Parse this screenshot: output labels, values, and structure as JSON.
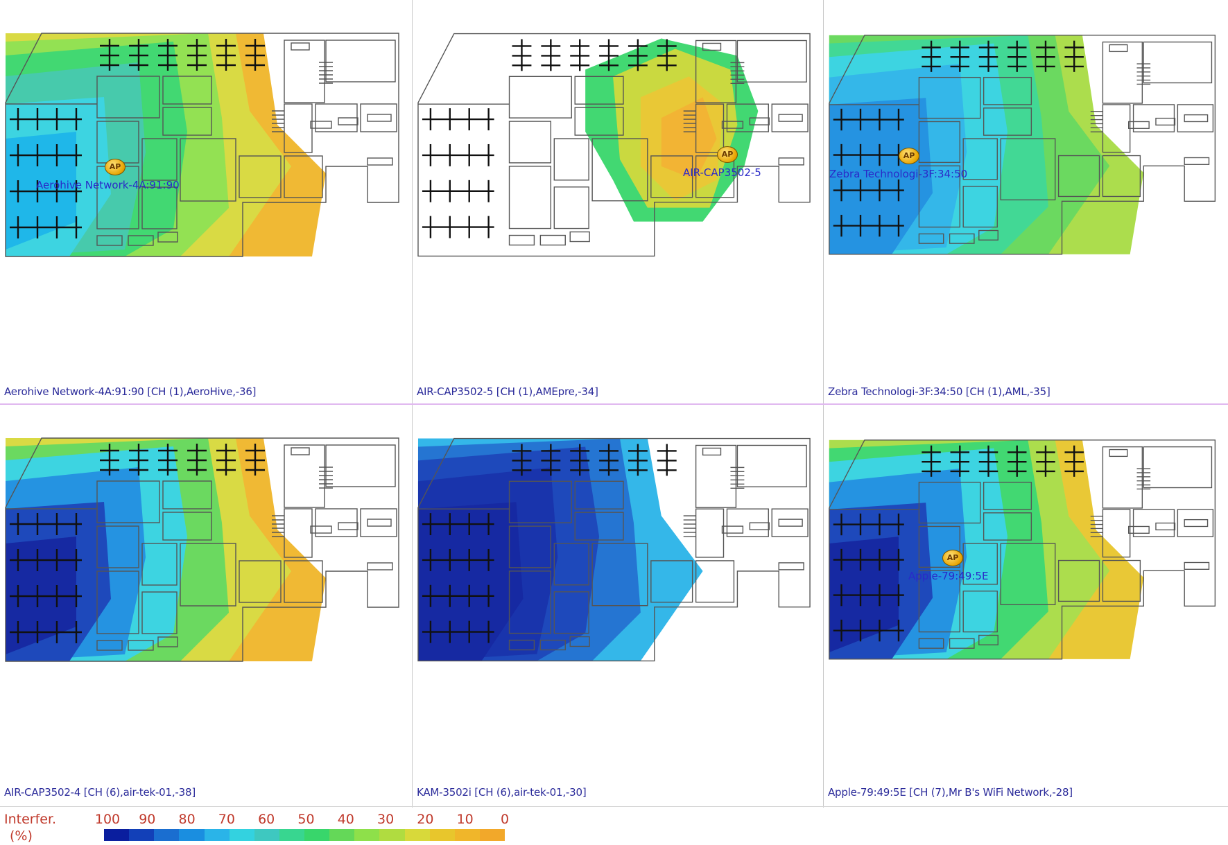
{
  "panels": [
    {
      "caption": "Aerohive Network-4A:91:90 [CH (1),AeroHive,-36]",
      "ap_name": "Aerohive Network-4A:91:90",
      "ap_label": "AP",
      "palette": [
        "#14b4e8",
        "#33d2e0",
        "#3ec8a8",
        "#38d66b",
        "#8ee04a",
        "#d8d93a",
        "#f0b62a"
      ]
    },
    {
      "caption": "AIR-CAP3502-5 [CH (1),AMEpre,-34]",
      "ap_name": "AIR-CAP3502-5",
      "ap_label": "AP",
      "palette": [
        "#ffffff",
        "#38d66b",
        "#7fd84a",
        "#c8d836",
        "#e8c62c",
        "#f2b02a"
      ]
    },
    {
      "caption": "Zebra Technologi-3F:34:50 [CH (1),AML,-35]",
      "ap_name": "Zebra Technologi-3F:34:50",
      "ap_label": "AP",
      "palette": [
        "#1a8ee0",
        "#2ab4e8",
        "#33d2e0",
        "#38d690",
        "#64d858",
        "#a8dc44"
      ]
    },
    {
      "caption": "AIR-CAP3502-4 [CH (6),air-tek-01,-38]",
      "ap_name": "",
      "ap_label": "",
      "palette": [
        "#0a1e9e",
        "#1240b8",
        "#1a8ee0",
        "#33d2e0",
        "#64d858",
        "#d8d93a",
        "#f0b62a"
      ]
    },
    {
      "caption": "KAM-3502i [CH (6),air-tek-01,-30]",
      "ap_name": "",
      "ap_label": "",
      "palette": [
        "#0a1e9e",
        "#0d2aa8",
        "#1240b8",
        "#1a6ed0",
        "#2ab4e8",
        "#ffffff"
      ]
    },
    {
      "caption": "Apple-79:49:5E [CH (7),Mr B's WiFi Network,-28]",
      "ap_name": "Apple-79:49:5E",
      "ap_label": "AP",
      "palette": [
        "#0a1e9e",
        "#1240b8",
        "#1a8ee0",
        "#33d2e0",
        "#38d66b",
        "#a8dc44",
        "#e8c62c"
      ]
    }
  ],
  "legend": {
    "title_line1": "Interfer.",
    "title_line2": "(%)",
    "ticks": [
      "100",
      "90",
      "80",
      "70",
      "60",
      "50",
      "40",
      "30",
      "20",
      "10",
      "0"
    ],
    "colors": [
      "#0a1e9e",
      "#1240b8",
      "#1a6ed0",
      "#1a8ee0",
      "#2ab4e8",
      "#33d2e0",
      "#3ec8c0",
      "#38d690",
      "#38d66b",
      "#64d858",
      "#8ee04a",
      "#b0dc40",
      "#d8d93a",
      "#e8c62c",
      "#f0b62a",
      "#f2a82a"
    ]
  }
}
